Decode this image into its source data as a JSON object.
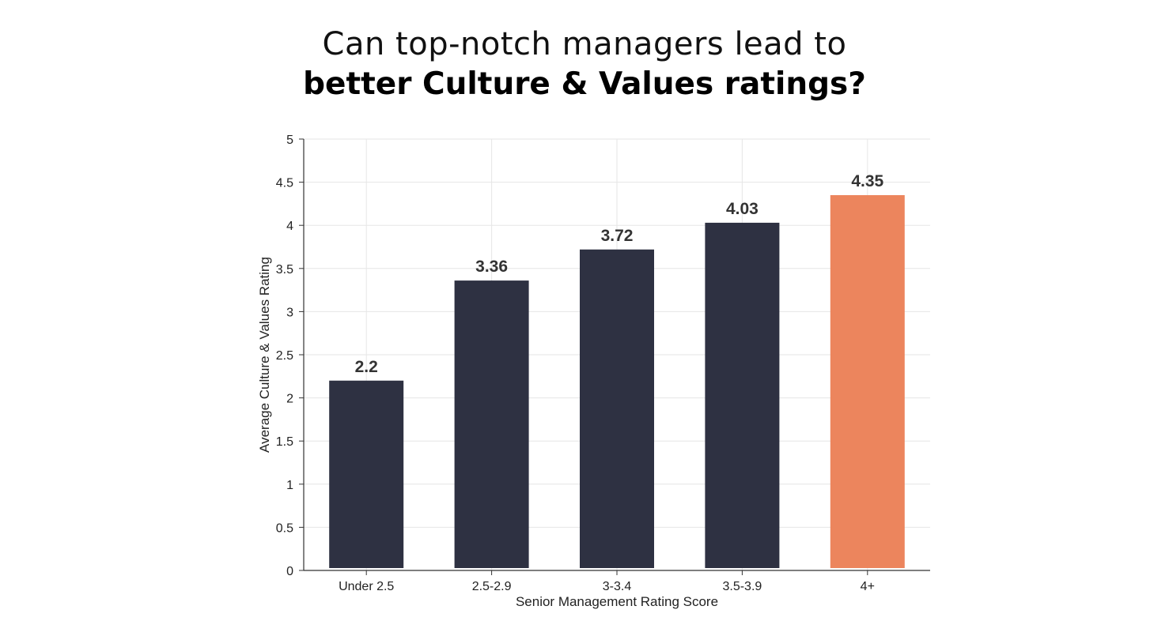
{
  "title": {
    "line1": "Can top-notch managers lead to",
    "line2": "better Culture & Values ratings?"
  },
  "chart_data": {
    "type": "bar",
    "categories": [
      "Under 2.5",
      "2.5-2.9",
      "3-3.4",
      "3.5-3.9",
      "4+"
    ],
    "values": [
      2.2,
      3.36,
      3.72,
      4.03,
      4.35
    ],
    "data_labels": [
      "2.2",
      "3.36",
      "3.72",
      "4.03",
      "4.35"
    ],
    "bar_colors": [
      "#2e3142",
      "#2e3142",
      "#2e3142",
      "#2e3142",
      "#ec855d"
    ],
    "xlabel": "Senior Management Rating Score",
    "ylabel": "Average Culture & Values Rating",
    "ylim": [
      0,
      5
    ],
    "yticks": [
      0,
      0.5,
      1,
      1.5,
      2,
      2.5,
      3,
      3.5,
      4,
      4.5,
      5
    ],
    "ytick_labels": [
      "0",
      "0.5",
      "1",
      "1.5",
      "2",
      "2.5",
      "3",
      "3.5",
      "4",
      "4.5",
      "5"
    ],
    "grid": true,
    "gridline_color": "#e6e6e6",
    "axis_color": "#333333"
  }
}
